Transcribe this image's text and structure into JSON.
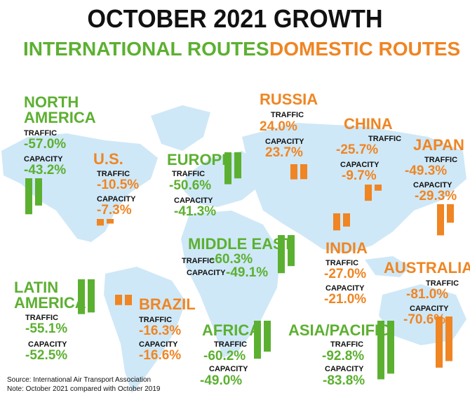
{
  "title": "OCTOBER 2021 GROWTH",
  "legend": {
    "international": "INTERNATIONAL ROUTES",
    "domestic": "DOMESTIC ROUTES"
  },
  "colors": {
    "international": "#5cb031",
    "domestic": "#ef8523",
    "title": "#111111",
    "map": "#cfe8f7"
  },
  "labels": {
    "traffic": "TRAFFIC",
    "capacity": "CAPACITY"
  },
  "source": "Source: International Air Transport Association",
  "note": "Note: October 2021 compared with October 2019",
  "chart_data": {
    "type": "bar",
    "series_types": [
      "TRAFFIC",
      "CAPACITY"
    ],
    "regions": [
      {
        "id": "north-america",
        "name_lines": [
          "NORTH",
          "AMERICA"
        ],
        "route": "international",
        "traffic": -57.0,
        "capacity": -43.2,
        "traffic_label": "-57.0%",
        "capacity_label": "-43.2%"
      },
      {
        "id": "us",
        "name_lines": [
          "U.S."
        ],
        "route": "domestic",
        "traffic": -10.5,
        "capacity": -7.3,
        "traffic_label": "-10.5%",
        "capacity_label": "-7.3%"
      },
      {
        "id": "europe",
        "name_lines": [
          "EUROPE"
        ],
        "route": "international",
        "traffic": -50.6,
        "capacity": -41.3,
        "traffic_label": "-50.6%",
        "capacity_label": "-41.3%"
      },
      {
        "id": "russia",
        "name_lines": [
          "RUSSIA"
        ],
        "route": "domestic",
        "traffic": 24.0,
        "capacity": 23.7,
        "traffic_label": "24.0%",
        "capacity_label": "23.7%"
      },
      {
        "id": "china",
        "name_lines": [
          "CHINA"
        ],
        "route": "domestic",
        "traffic": -25.7,
        "capacity": -9.7,
        "traffic_label": "-25.7%",
        "capacity_label": "-9.7%"
      },
      {
        "id": "japan",
        "name_lines": [
          "JAPAN"
        ],
        "route": "domestic",
        "traffic": -49.3,
        "capacity": -29.3,
        "traffic_label": "-49.3%",
        "capacity_label": "-29.3%"
      },
      {
        "id": "middle-east",
        "name_lines": [
          "MIDDLE EAST"
        ],
        "route": "international",
        "traffic": -60.3,
        "capacity": -49.1,
        "traffic_label": "-60.3%",
        "capacity_label": "-49.1%"
      },
      {
        "id": "india",
        "name_lines": [
          "INDIA"
        ],
        "route": "domestic",
        "traffic": -27.0,
        "capacity": -21.0,
        "traffic_label": "-27.0%",
        "capacity_label": "-21.0%"
      },
      {
        "id": "australia",
        "name_lines": [
          "AUSTRALIA"
        ],
        "route": "domestic",
        "traffic": -81.0,
        "capacity": -70.6,
        "traffic_label": "-81.0%",
        "capacity_label": "-70.6%"
      },
      {
        "id": "latin-america",
        "name_lines": [
          "LATIN",
          "AMERICA"
        ],
        "route": "international",
        "traffic": -55.1,
        "capacity": -52.5,
        "traffic_label": "-55.1%",
        "capacity_label": "-52.5%"
      },
      {
        "id": "brazil",
        "name_lines": [
          "BRAZIL"
        ],
        "route": "domestic",
        "traffic": -16.3,
        "capacity": -16.6,
        "traffic_label": "-16.3%",
        "capacity_label": "-16.6%"
      },
      {
        "id": "africa",
        "name_lines": [
          "AFRICA"
        ],
        "route": "international",
        "traffic": -60.2,
        "capacity": -49.0,
        "traffic_label": "-60.2%",
        "capacity_label": "-49.0%"
      },
      {
        "id": "asia-pacific",
        "name_lines": [
          "ASIA/PACIFIC"
        ],
        "route": "international",
        "traffic": -92.8,
        "capacity": -83.8,
        "traffic_label": "-92.8%",
        "capacity_label": "-83.8%"
      }
    ]
  }
}
